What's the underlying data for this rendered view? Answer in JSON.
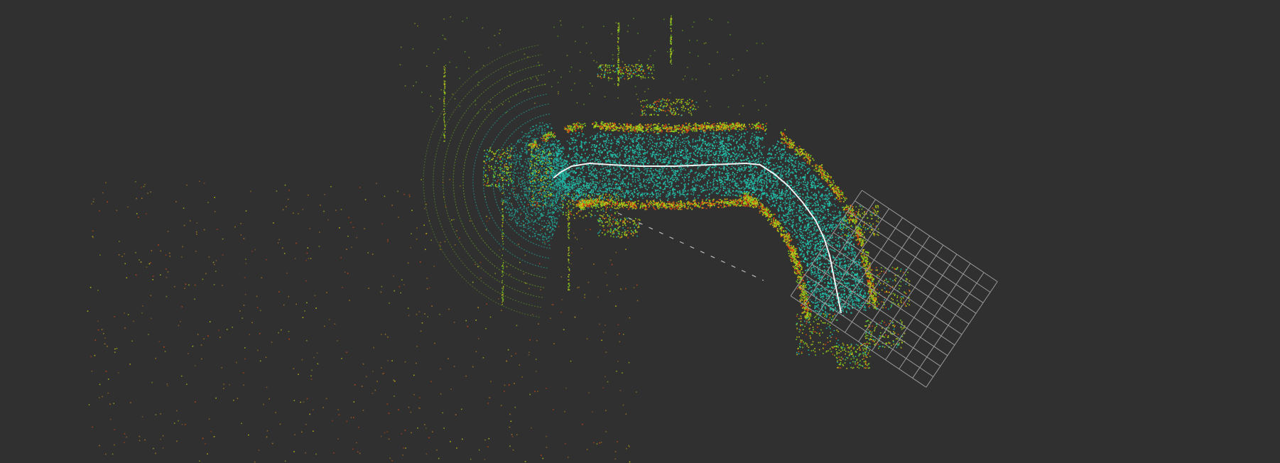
{
  "scene": {
    "background_color": "#303030",
    "point_colors": {
      "floor": "#1fb8a8",
      "floor_bright": "#27d4b6",
      "low_wall": "#7fd21c",
      "mid_wall": "#c8c81a",
      "high_wall": "#d94a12",
      "far_points": "#b07a22"
    },
    "trajectory_color": "#f2f2f2",
    "grid_color": "#9a9a9a",
    "grid_cells": 10
  }
}
